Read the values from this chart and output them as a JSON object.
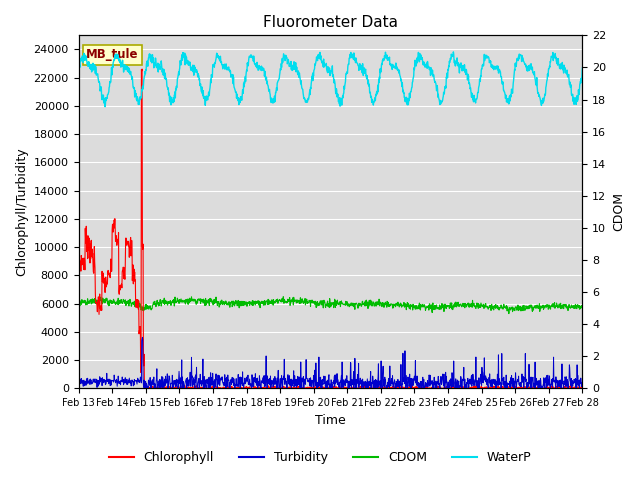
{
  "title": "Fluorometer Data",
  "xlabel": "Time",
  "ylabel_left": "Chlorophyll/Turbidity",
  "ylabel_right": "CDOM",
  "ylim_left": [
    0,
    25000
  ],
  "ylim_right": [
    0,
    22
  ],
  "yticks_left": [
    0,
    2000,
    4000,
    6000,
    8000,
    10000,
    12000,
    14000,
    16000,
    18000,
    20000,
    22000,
    24000
  ],
  "yticks_right": [
    0,
    2,
    4,
    6,
    8,
    10,
    12,
    14,
    16,
    18,
    20,
    22
  ],
  "station_label": "MB_tule",
  "station_label_color": "#8B0000",
  "station_box_color": "#FFFFCC",
  "colors": {
    "chlorophyll": "#FF0000",
    "turbidity": "#0000CC",
    "cdom": "#00BB00",
    "waterp": "#00DDEE"
  },
  "legend_labels": [
    "Chlorophyll",
    "Turbidity",
    "CDOM",
    "WaterP"
  ],
  "background_color": "#DCDCDC",
  "x_start_day": 13,
  "x_end_day": 28,
  "x_ticks": [
    13,
    14,
    15,
    16,
    17,
    18,
    19,
    20,
    21,
    22,
    23,
    24,
    25,
    26,
    27,
    28
  ]
}
